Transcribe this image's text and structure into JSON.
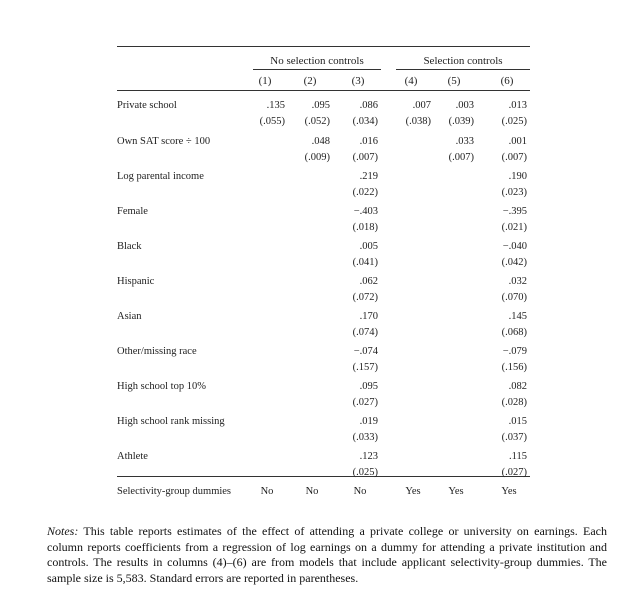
{
  "table": {
    "group_headers": [
      "No selection controls",
      "Selection controls"
    ],
    "columns": [
      "(1)",
      "(2)",
      "(3)",
      "(4)",
      "(5)",
      "(6)"
    ],
    "rows": [
      {
        "label": "Private school",
        "coef": [
          ".135",
          ".095",
          ".086",
          ".007",
          ".003",
          ".013"
        ],
        "se": [
          "(.055)",
          "(.052)",
          "(.034)",
          "(.038)",
          "(.039)",
          "(.025)"
        ]
      },
      {
        "label": "Own SAT score ÷ 100",
        "coef": [
          "",
          ".048",
          ".016",
          "",
          ".033",
          ".001"
        ],
        "se": [
          "",
          "(.009)",
          "(.007)",
          "",
          "(.007)",
          "(.007)"
        ]
      },
      {
        "label": "Log parental income",
        "coef": [
          "",
          "",
          ".219",
          "",
          "",
          ".190"
        ],
        "se": [
          "",
          "",
          "(.022)",
          "",
          "",
          "(.023)"
        ]
      },
      {
        "label": "Female",
        "coef": [
          "",
          "",
          "−.403",
          "",
          "",
          "−.395"
        ],
        "se": [
          "",
          "",
          "(.018)",
          "",
          "",
          "(.021)"
        ]
      },
      {
        "label": "Black",
        "coef": [
          "",
          "",
          ".005",
          "",
          "",
          "−.040"
        ],
        "se": [
          "",
          "",
          "(.041)",
          "",
          "",
          "(.042)"
        ]
      },
      {
        "label": "Hispanic",
        "coef": [
          "",
          "",
          ".062",
          "",
          "",
          ".032"
        ],
        "se": [
          "",
          "",
          "(.072)",
          "",
          "",
          "(.070)"
        ]
      },
      {
        "label": "Asian",
        "coef": [
          "",
          "",
          ".170",
          "",
          "",
          ".145"
        ],
        "se": [
          "",
          "",
          "(.074)",
          "",
          "",
          "(.068)"
        ]
      },
      {
        "label": "Other/missing race",
        "coef": [
          "",
          "",
          "−.074",
          "",
          "",
          "−.079"
        ],
        "se": [
          "",
          "",
          "(.157)",
          "",
          "",
          "(.156)"
        ]
      },
      {
        "label": "High school top 10%",
        "coef": [
          "",
          "",
          ".095",
          "",
          "",
          ".082"
        ],
        "se": [
          "",
          "",
          "(.027)",
          "",
          "",
          "(.028)"
        ]
      },
      {
        "label": "High school rank missing",
        "coef": [
          "",
          "",
          ".019",
          "",
          "",
          ".015"
        ],
        "se": [
          "",
          "",
          "(.033)",
          "",
          "",
          "(.037)"
        ]
      },
      {
        "label": "Athlete",
        "coef": [
          "",
          "",
          ".123",
          "",
          "",
          ".115"
        ],
        "se": [
          "",
          "",
          "(.025)",
          "",
          "",
          "(.027)"
        ]
      }
    ],
    "footer": {
      "label": "Selectivity-group dummies",
      "values": [
        "No",
        "No",
        "No",
        "Yes",
        "Yes",
        "Yes"
      ]
    }
  },
  "notes": {
    "lead": "Notes:",
    "text": " This table reports estimates of the effect of attending a private college or university on earnings. Each column reports coefficients from a regression of log earnings on a dummy for attending a private institution and controls. The results in columns (4)–(6) are from models that include applicant selectivity-group dummies. The sample size is 5,583. Standard errors are reported in parentheses."
  }
}
